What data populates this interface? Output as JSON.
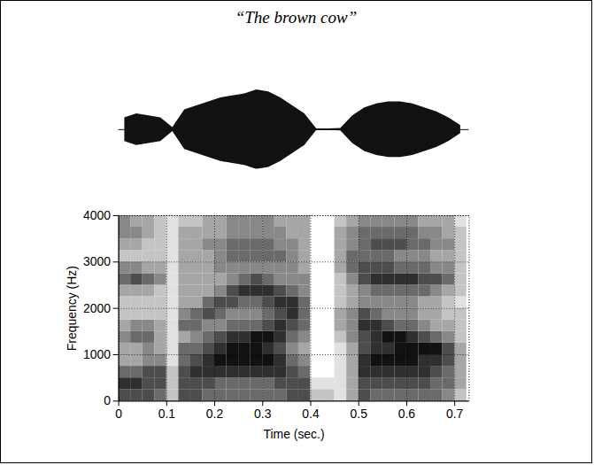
{
  "chart_data": {
    "type": "spectrogram",
    "title": "“The brown cow”",
    "x_label": "Time (sec.)",
    "y_label": "Frequency (Hz)",
    "xlim": [
      0,
      0.73
    ],
    "xticks": [
      0,
      0.1,
      0.2,
      0.3,
      0.4,
      0.5,
      0.6,
      0.7
    ],
    "ylim": [
      0,
      4000
    ],
    "yticks": [
      0,
      1000,
      2000,
      3000,
      4000
    ],
    "grid": true,
    "color": "#111111",
    "spectrogram": {
      "time_bins": [
        0,
        0.025,
        0.05,
        0.075,
        0.1,
        0.125,
        0.15,
        0.175,
        0.2,
        0.225,
        0.25,
        0.275,
        0.3,
        0.325,
        0.35,
        0.375,
        0.4,
        0.425,
        0.45,
        0.475,
        0.5,
        0.525,
        0.55,
        0.575,
        0.6,
        0.625,
        0.65,
        0.675,
        0.7,
        0.725
      ],
      "frequency_bins": [
        0,
        250,
        500,
        750,
        1000,
        1250,
        1500,
        1750,
        2000,
        2250,
        2500,
        2750,
        3000,
        3250,
        3500,
        3750,
        4000
      ],
      "cells": [
        [
          6,
          7,
          5,
          3,
          3,
          4,
          3,
          2,
          2,
          3,
          5,
          4,
          2,
          3,
          4,
          4
        ],
        [
          6,
          7,
          5,
          3,
          3,
          5,
          4,
          2,
          2,
          3,
          6,
          4,
          2,
          3,
          4,
          3
        ],
        [
          6,
          6,
          6,
          4,
          4,
          5,
          4,
          2,
          2,
          3,
          5,
          3,
          2,
          2,
          3,
          3
        ],
        [
          5,
          6,
          6,
          4,
          3,
          3,
          3,
          2,
          2,
          2,
          4,
          3,
          2,
          2,
          2,
          2
        ],
        [
          2,
          2,
          2,
          1,
          1,
          1,
          1,
          1,
          1,
          1,
          1,
          1,
          1,
          1,
          1,
          1
        ],
        [
          6,
          6,
          6,
          5,
          5,
          3,
          5,
          4,
          3,
          3,
          3,
          3,
          3,
          3,
          3,
          2
        ],
        [
          6,
          6,
          7,
          6,
          5,
          4,
          5,
          5,
          3,
          3,
          3,
          3,
          3,
          3,
          3,
          2
        ],
        [
          5,
          6,
          7,
          7,
          6,
          5,
          4,
          6,
          5,
          3,
          3,
          3,
          3,
          4,
          3,
          3
        ],
        [
          5,
          5,
          7,
          8,
          7,
          6,
          4,
          5,
          6,
          4,
          3,
          4,
          4,
          4,
          3,
          3
        ],
        [
          5,
          5,
          7,
          8,
          8,
          7,
          5,
          4,
          6,
          6,
          4,
          4,
          5,
          5,
          4,
          4
        ],
        [
          5,
          5,
          7,
          8,
          8,
          7,
          5,
          4,
          5,
          7,
          5,
          4,
          5,
          5,
          4,
          4
        ],
        [
          5,
          5,
          7,
          8,
          8,
          8,
          5,
          4,
          5,
          7,
          6,
          4,
          5,
          5,
          4,
          4
        ],
        [
          5,
          5,
          7,
          8,
          7,
          8,
          6,
          5,
          6,
          7,
          5,
          4,
          5,
          5,
          4,
          4
        ],
        [
          5,
          6,
          7,
          7,
          6,
          7,
          7,
          6,
          7,
          6,
          4,
          4,
          5,
          4,
          4,
          3
        ],
        [
          6,
          6,
          6,
          5,
          4,
          5,
          6,
          7,
          7,
          5,
          4,
          4,
          4,
          4,
          3,
          3
        ],
        [
          6,
          6,
          5,
          4,
          3,
          4,
          5,
          5,
          5,
          4,
          4,
          3,
          3,
          3,
          3,
          3
        ],
        [
          2,
          1,
          0,
          0,
          0,
          0,
          0,
          0,
          0,
          0,
          0,
          0,
          0,
          0,
          0,
          0
        ],
        [
          2,
          1,
          0,
          0,
          0,
          0,
          0,
          0,
          0,
          0,
          0,
          0,
          0,
          0,
          0,
          0
        ],
        [
          1,
          1,
          1,
          1,
          1,
          2,
          3,
          3,
          2,
          2,
          2,
          3,
          3,
          3,
          3,
          2
        ],
        [
          3,
          3,
          3,
          3,
          3,
          4,
          4,
          4,
          3,
          3,
          4,
          5,
          5,
          4,
          4,
          3
        ],
        [
          6,
          6,
          7,
          7,
          6,
          6,
          7,
          6,
          4,
          4,
          6,
          6,
          5,
          5,
          5,
          4
        ],
        [
          5,
          6,
          7,
          8,
          7,
          7,
          7,
          5,
          4,
          5,
          7,
          6,
          5,
          6,
          5,
          4
        ],
        [
          5,
          6,
          7,
          8,
          7,
          8,
          6,
          4,
          4,
          5,
          7,
          6,
          5,
          6,
          5,
          4
        ],
        [
          5,
          6,
          7,
          8,
          8,
          8,
          5,
          4,
          4,
          5,
          7,
          5,
          4,
          6,
          5,
          4
        ],
        [
          5,
          6,
          7,
          8,
          8,
          7,
          5,
          4,
          4,
          5,
          7,
          5,
          4,
          5,
          5,
          4
        ],
        [
          5,
          6,
          7,
          7,
          8,
          6,
          4,
          3,
          3,
          5,
          6,
          5,
          4,
          5,
          4,
          3
        ],
        [
          5,
          5,
          6,
          7,
          8,
          5,
          3,
          3,
          3,
          4,
          6,
          4,
          3,
          4,
          4,
          3
        ],
        [
          4,
          5,
          5,
          6,
          6,
          4,
          3,
          2,
          2,
          3,
          5,
          4,
          3,
          4,
          3,
          3
        ],
        [
          2,
          3,
          3,
          3,
          3,
          2,
          2,
          2,
          1,
          2,
          2,
          2,
          2,
          2,
          2,
          1
        ]
      ]
    },
    "waveform": {
      "x": [
        0.0125,
        0.0375,
        0.0625,
        0.0875,
        0.1125,
        0.1375,
        0.1625,
        0.1875,
        0.2125,
        0.2375,
        0.2625,
        0.2875,
        0.3125,
        0.3375,
        0.3625,
        0.3875,
        0.4125,
        0.4375,
        0.4625,
        0.4875,
        0.5125,
        0.5375,
        0.5625,
        0.5875,
        0.6125,
        0.6375,
        0.6625,
        0.6875,
        0.7125
      ],
      "amplitude": [
        0.3,
        0.4,
        0.35,
        0.3,
        0.05,
        0.5,
        0.6,
        0.7,
        0.8,
        0.85,
        0.9,
        1.0,
        0.95,
        0.8,
        0.6,
        0.4,
        0.02,
        0.02,
        0.03,
        0.35,
        0.55,
        0.65,
        0.7,
        0.7,
        0.65,
        0.55,
        0.45,
        0.3,
        0.1
      ]
    }
  }
}
